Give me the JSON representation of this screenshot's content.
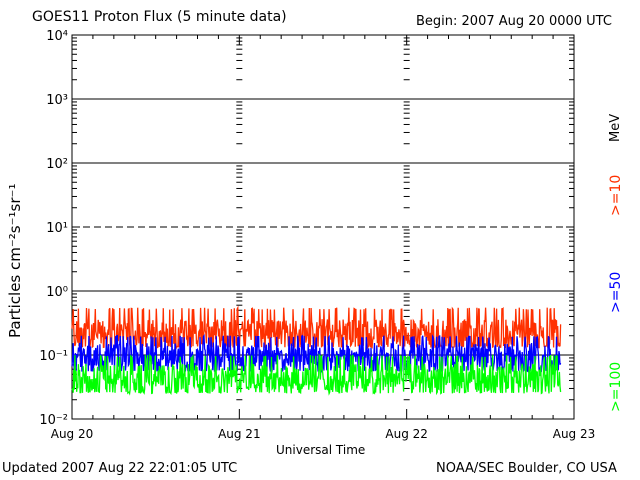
{
  "chart_data": {
    "type": "line",
    "title": "GOES11 Proton Flux (5 minute data)",
    "begin": "Begin: 2007 Aug 20 0000 UTC",
    "xlabel": "Universal Time",
    "ylabel": "Particles cm⁻²s⁻¹sr⁻¹",
    "yscale": "log",
    "ylim_exp": [
      -2,
      4
    ],
    "y_ticks": [
      {
        "exp": -2,
        "label": "10⁻²"
      },
      {
        "exp": -1,
        "label": "10⁻¹"
      },
      {
        "exp": 0,
        "label": "10⁰"
      },
      {
        "exp": 1,
        "label": "10¹"
      },
      {
        "exp": 2,
        "label": "10²"
      },
      {
        "exp": 3,
        "label": "10³"
      },
      {
        "exp": 4,
        "label": "10⁴"
      }
    ],
    "threshold_lines": [
      {
        "exp": -1,
        "style": "solid"
      },
      {
        "exp": 0,
        "style": "solid"
      },
      {
        "exp": 1,
        "style": "dashed"
      },
      {
        "exp": 2,
        "style": "solid"
      },
      {
        "exp": 3,
        "style": "solid"
      }
    ],
    "xlim_days": [
      0,
      3
    ],
    "x_ticks": [
      "Aug 20",
      "Aug 21",
      "Aug 22",
      "Aug 23"
    ],
    "data_end_day": 2.92,
    "series": [
      {
        "name": ">=10",
        "color": "#ff3000",
        "low": 0.13,
        "high": 0.55,
        "typical": 0.22
      },
      {
        "name": ">=50",
        "color": "#0000ff",
        "low": 0.055,
        "high": 0.2,
        "typical": 0.1
      },
      {
        "name": ">=100",
        "color": "#00ff00",
        "low": 0.025,
        "high": 0.1,
        "typical": 0.045
      }
    ],
    "unit": "MeV"
  },
  "footer": {
    "updated": "Updated 2007 Aug 22 22:01:05 UTC",
    "credit": "NOAA/SEC Boulder, CO USA"
  }
}
